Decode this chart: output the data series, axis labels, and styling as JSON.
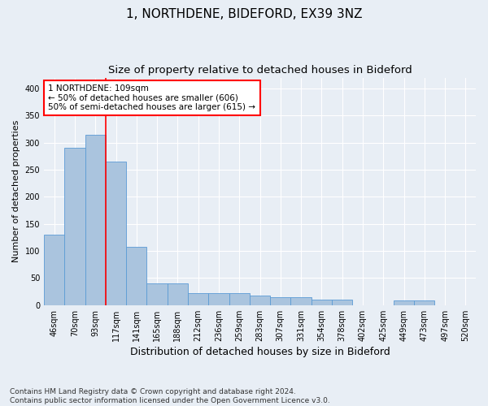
{
  "title1": "1, NORTHDENE, BIDEFORD, EX39 3NZ",
  "title2": "Size of property relative to detached houses in Bideford",
  "xlabel": "Distribution of detached houses by size in Bideford",
  "ylabel": "Number of detached properties",
  "footnote": "Contains HM Land Registry data © Crown copyright and database right 2024.\nContains public sector information licensed under the Open Government Licence v3.0.",
  "bin_labels": [
    "46sqm",
    "70sqm",
    "93sqm",
    "117sqm",
    "141sqm",
    "165sqm",
    "188sqm",
    "212sqm",
    "236sqm",
    "259sqm",
    "283sqm",
    "307sqm",
    "331sqm",
    "354sqm",
    "378sqm",
    "402sqm",
    "425sqm",
    "449sqm",
    "473sqm",
    "497sqm",
    "520sqm"
  ],
  "bar_heights": [
    130,
    290,
    315,
    265,
    107,
    40,
    40,
    22,
    22,
    22,
    17,
    15,
    15,
    10,
    10,
    0,
    0,
    8,
    8,
    0,
    0
  ],
  "bar_color": "#aac4de",
  "bar_edge_color": "#5b9bd5",
  "bar_width": 1.0,
  "vline_x": 2.5,
  "vline_color": "red",
  "annotation_text": "1 NORTHDENE: 109sqm\n← 50% of detached houses are smaller (606)\n50% of semi-detached houses are larger (615) →",
  "annotation_box_color": "white",
  "annotation_box_edge": "red",
  "ylim": [
    0,
    420
  ],
  "yticks": [
    0,
    50,
    100,
    150,
    200,
    250,
    300,
    350,
    400
  ],
  "background_color": "#e8eef5",
  "plot_bg_color": "#e8eef5",
  "grid_color": "white",
  "title1_fontsize": 11,
  "title2_fontsize": 9.5,
  "xlabel_fontsize": 9,
  "ylabel_fontsize": 8,
  "tick_fontsize": 7,
  "annotation_fontsize": 7.5,
  "footnote_fontsize": 6.5
}
